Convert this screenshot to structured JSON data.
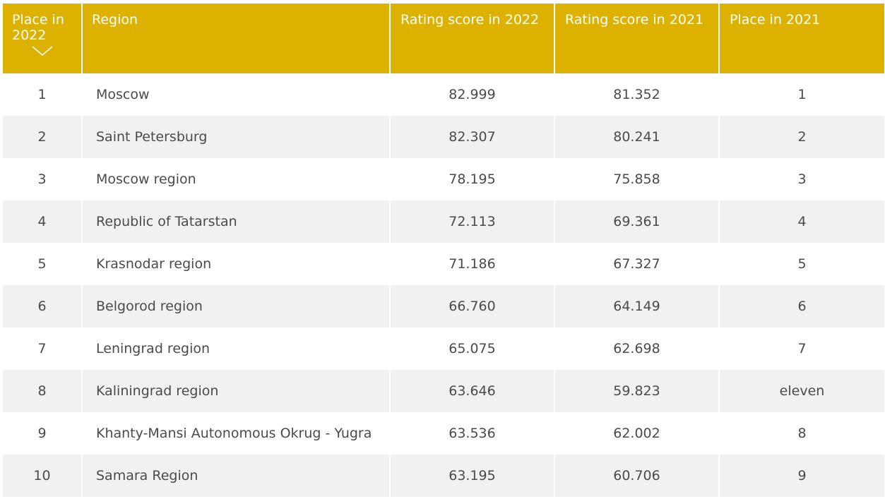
{
  "columns": {
    "place_2022": "Place in 2022",
    "place_2022_line1": "Place in",
    "place_2022_line2": "2022",
    "region": "Region",
    "score_2022": "Rating score in 2022",
    "score_2021": "Rating score in 2021",
    "place_2021": "Place in 2021"
  },
  "sort_icon": "chevron-down-icon",
  "colors": {
    "header_bg": "#dcb100",
    "header_text": "#ffffff",
    "row_alt_bg": "#f1f1f1",
    "body_text": "#4a4a4a"
  },
  "rows": [
    {
      "place_2022": "1",
      "region": "Moscow",
      "score_2022": "82.999",
      "score_2021": "81.352",
      "place_2021": "1"
    },
    {
      "place_2022": "2",
      "region": "Saint Petersburg",
      "score_2022": "82.307",
      "score_2021": "80.241",
      "place_2021": "2"
    },
    {
      "place_2022": "3",
      "region": "Moscow region",
      "score_2022": "78.195",
      "score_2021": "75.858",
      "place_2021": "3"
    },
    {
      "place_2022": "4",
      "region": "Republic of Tatarstan",
      "score_2022": "72.113",
      "score_2021": "69.361",
      "place_2021": "4"
    },
    {
      "place_2022": "5",
      "region": "Krasnodar region",
      "score_2022": "71.186",
      "score_2021": "67.327",
      "place_2021": "5"
    },
    {
      "place_2022": "6",
      "region": "Belgorod region",
      "score_2022": "66.760",
      "score_2021": "64.149",
      "place_2021": "6"
    },
    {
      "place_2022": "7",
      "region": "Leningrad region",
      "score_2022": "65.075",
      "score_2021": "62.698",
      "place_2021": "7"
    },
    {
      "place_2022": "8",
      "region": "Kaliningrad region",
      "score_2022": "63.646",
      "score_2021": "59.823",
      "place_2021": "eleven"
    },
    {
      "place_2022": "9",
      "region": "Khanty-Mansi Autonomous Okrug - Yugra",
      "score_2022": "63.536",
      "score_2021": "62.002",
      "place_2021": "8"
    },
    {
      "place_2022": "10",
      "region": "Samara Region",
      "score_2022": "63.195",
      "score_2021": "60.706",
      "place_2021": "9"
    }
  ]
}
